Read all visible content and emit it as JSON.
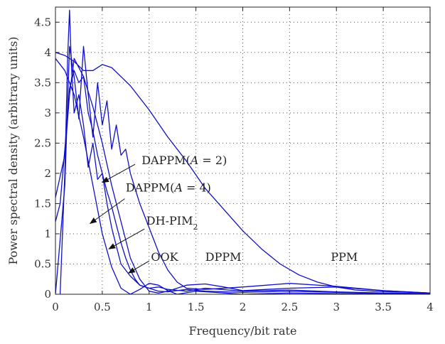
{
  "chart_data": {
    "type": "line",
    "xlabel": "Frequency/bit rate",
    "ylabel": "Power spectral density (arbitrary units)",
    "xlim": [
      0,
      4
    ],
    "ylim": [
      0,
      4.75
    ],
    "xticks": [
      0,
      0.5,
      1,
      1.5,
      2,
      2.5,
      3,
      3.5,
      4
    ],
    "xtick_labels": [
      "0",
      "0.5",
      "1",
      "1.5",
      "2",
      "2.5",
      "3",
      "3.5",
      "4"
    ],
    "yticks": [
      0,
      0.5,
      1,
      1.5,
      2,
      2.5,
      3,
      3.5,
      4,
      4.5
    ],
    "ytick_labels": [
      "0",
      "0.5",
      "1",
      "1.5",
      "2",
      "2.5",
      "3",
      "3.5",
      "4",
      "4.5"
    ],
    "grid": true,
    "line_color": "#1010cc",
    "series": [
      {
        "name": "PPM",
        "x": [
          0,
          0.1,
          0.2,
          0.3,
          0.4,
          0.5,
          0.6,
          0.7,
          0.8,
          1.0,
          1.2,
          1.4,
          1.6,
          1.8,
          2.0,
          2.2,
          2.4,
          2.6,
          2.8,
          3.0,
          3.2,
          3.4,
          3.6,
          3.8,
          4.0
        ],
        "y": [
          4.0,
          3.95,
          3.85,
          3.7,
          3.7,
          3.8,
          3.75,
          3.6,
          3.45,
          3.05,
          2.6,
          2.2,
          1.75,
          1.4,
          1.05,
          0.75,
          0.5,
          0.32,
          0.2,
          0.12,
          0.07,
          0.05,
          0.04,
          0.03,
          0.02
        ]
      },
      {
        "name": "DPPM",
        "x": [
          0,
          0.1,
          0.15,
          0.2,
          0.3,
          0.4,
          0.5,
          0.6,
          0.7,
          0.8,
          0.9,
          1.0,
          1.1,
          1.2,
          1.4,
          1.6,
          1.8,
          2.0,
          2.5,
          3.0,
          3.5,
          4.0
        ],
        "y": [
          1.6,
          2.3,
          3.3,
          3.9,
          3.6,
          3.1,
          2.5,
          1.8,
          1.2,
          0.6,
          0.25,
          0.05,
          0.02,
          0.05,
          0.15,
          0.17,
          0.12,
          0.06,
          0.1,
          0.12,
          0.06,
          0.02
        ]
      },
      {
        "name": "OOK",
        "x": [
          0,
          0.1,
          0.2,
          0.3,
          0.4,
          0.5,
          0.6,
          0.7,
          0.8,
          0.9,
          1.0,
          1.1,
          1.2,
          1.3,
          1.5,
          1.7,
          2.0,
          2.5,
          3.0,
          3.5,
          4.0
        ],
        "y": [
          3.9,
          3.7,
          3.3,
          2.6,
          1.8,
          1.0,
          0.45,
          0.1,
          0.0,
          0.08,
          0.18,
          0.15,
          0.06,
          0.0,
          0.05,
          0.03,
          0.0,
          0.02,
          0.01,
          0.01,
          0.0
        ]
      },
      {
        "name": "DH-PIM2",
        "x": [
          0,
          0.05,
          0.1,
          0.15,
          0.2,
          0.25,
          0.3,
          0.35,
          0.4,
          0.45,
          0.5,
          0.55,
          0.6,
          0.65,
          0.7,
          0.75,
          0.8,
          0.85,
          0.9,
          1.0,
          1.1,
          1.2,
          1.4,
          1.6,
          2.0,
          2.5,
          3.0,
          3.5,
          4.0
        ],
        "y": [
          1.2,
          1.5,
          2.4,
          3.4,
          3.7,
          3.5,
          3.6,
          3.0,
          2.7,
          2.3,
          2.0,
          1.7,
          1.45,
          1.15,
          0.85,
          0.6,
          0.4,
          0.25,
          0.15,
          0.1,
          0.12,
          0.08,
          0.05,
          0.1,
          0.05,
          0.07,
          0.04,
          0.02,
          0.01
        ]
      },
      {
        "name": "DAPPM(A = 2)",
        "x": [
          0,
          0.1,
          0.15,
          0.2,
          0.25,
          0.3,
          0.35,
          0.4,
          0.45,
          0.5,
          0.55,
          0.6,
          0.65,
          0.7,
          0.75,
          0.8,
          0.9,
          1.0,
          1.1,
          1.2,
          1.3,
          1.4,
          1.6,
          2.0,
          2.5,
          3.0,
          3.5,
          4.0
        ],
        "y": [
          0.0,
          1.8,
          4.1,
          3.6,
          2.9,
          4.1,
          3.3,
          2.6,
          3.5,
          2.8,
          3.2,
          2.4,
          2.8,
          2.3,
          2.4,
          2.0,
          1.5,
          1.1,
          0.7,
          0.4,
          0.2,
          0.1,
          0.08,
          0.12,
          0.18,
          0.13,
          0.06,
          0.02
        ]
      },
      {
        "name": "DAPPM(A = 4)",
        "x": [
          0.05,
          0.1,
          0.13,
          0.15,
          0.17,
          0.2,
          0.25,
          0.3,
          0.35,
          0.4,
          0.45,
          0.5,
          0.55,
          0.6,
          0.65,
          0.7,
          0.8,
          0.9,
          1.0,
          1.1,
          1.2,
          1.4,
          1.6,
          2.0,
          2.5,
          3.0,
          3.5,
          4.0
        ],
        "y": [
          0.0,
          2.0,
          3.9,
          4.7,
          3.8,
          3.0,
          3.3,
          2.8,
          2.1,
          2.5,
          1.9,
          2.0,
          1.5,
          1.1,
          0.8,
          0.5,
          0.3,
          0.15,
          0.1,
          0.05,
          0.04,
          0.08,
          0.05,
          0.03,
          0.05,
          0.03,
          0.02,
          0.01
        ]
      }
    ],
    "annotations": [
      {
        "text": "DAPPM(A = 2)",
        "parts": [
          {
            "t": "DAPPM("
          },
          {
            "t": "A",
            "italic": true
          },
          {
            "t": " = 2)"
          }
        ],
        "x": 0.92,
        "y": 2.15,
        "arrow_to": [
          0.5,
          1.85
        ],
        "arrow_from": [
          0.85,
          2.15
        ]
      },
      {
        "text": "DAPPM(A = 4)",
        "parts": [
          {
            "t": "DAPPM("
          },
          {
            "t": "A",
            "italic": true
          },
          {
            "t": " = 4)"
          }
        ],
        "x": 0.75,
        "y": 1.7,
        "arrow_to": [
          0.37,
          1.17
        ],
        "arrow_from": [
          0.74,
          1.58
        ]
      },
      {
        "text": "DH-PIM2",
        "parts": [
          {
            "t": "DH-PIM"
          },
          {
            "t": "2",
            "sub": true
          }
        ],
        "x": 0.97,
        "y": 1.15,
        "arrow_to": [
          0.57,
          0.75
        ],
        "arrow_from": [
          0.95,
          1.08
        ]
      },
      {
        "text": "OOK",
        "parts": [
          {
            "t": "OOK"
          }
        ],
        "x": 1.02,
        "y": 0.55,
        "arrow_to": [
          0.78,
          0.35
        ],
        "arrow_from": [
          1.0,
          0.55
        ]
      },
      {
        "text": "DPPM",
        "parts": [
          {
            "t": "DPPM"
          }
        ],
        "x": 1.6,
        "y": 0.55
      },
      {
        "text": "PPM",
        "parts": [
          {
            "t": "PPM"
          }
        ],
        "x": 2.94,
        "y": 0.55
      }
    ]
  }
}
